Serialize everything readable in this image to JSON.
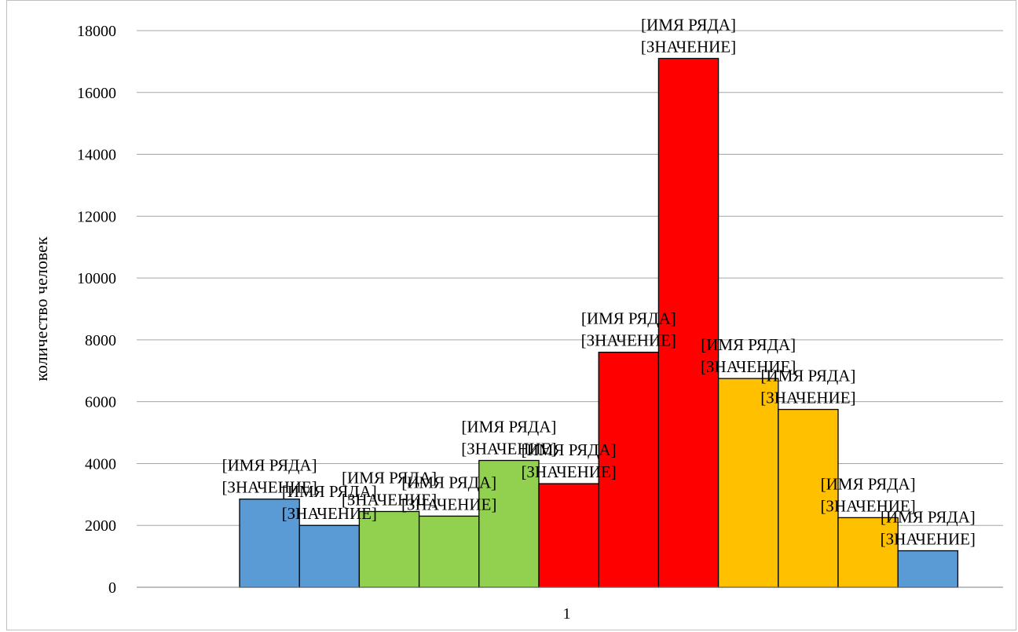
{
  "chart_data": {
    "type": "bar",
    "categories": [
      "1"
    ],
    "ylabel": "количество человек",
    "xlabel": "",
    "ylim": [
      0,
      18000
    ],
    "yticks": [
      0,
      2000,
      4000,
      6000,
      8000,
      10000,
      12000,
      14000,
      16000,
      18000
    ],
    "grid": true,
    "series": [
      {
        "label_name": "[ИМЯ РЯДА]",
        "label_value": "[ЗНАЧЕНИЕ]",
        "value": 2850,
        "color": "#5b9bd5"
      },
      {
        "label_name": "[ИМЯ РЯДА]",
        "label_value": "[ЗНАЧЕНИЕ]",
        "value": 2000,
        "color": "#5b9bd5"
      },
      {
        "label_name": "[ИМЯ РЯДА]",
        "label_value": "[ЗНАЧЕНИЕ]",
        "value": 2450,
        "color": "#92d050"
      },
      {
        "label_name": "[ИМЯ РЯДА]",
        "label_value": "[ЗНАЧЕНИЕ]",
        "value": 2300,
        "color": "#92d050"
      },
      {
        "label_name": "[ИМЯ РЯДА]",
        "label_value": "[ЗНАЧЕНИЕ]",
        "value": 4100,
        "color": "#92d050"
      },
      {
        "label_name": "[ИМЯ РЯДА]",
        "label_value": "[ЗНАЧЕНИЕ]",
        "value": 3350,
        "color": "#ff0000"
      },
      {
        "label_name": "[ИМЯ РЯДА]",
        "label_value": "[ЗНАЧЕНИЕ]",
        "value": 7600,
        "color": "#ff0000"
      },
      {
        "label_name": "[ИМЯ РЯДА]",
        "label_value": "[ЗНАЧЕНИЕ]",
        "value": 17100,
        "color": "#ff0000"
      },
      {
        "label_name": "[ИМЯ РЯДА]",
        "label_value": "[ЗНАЧЕНИЕ]",
        "value": 6750,
        "color": "#ffc000"
      },
      {
        "label_name": "[ИМЯ РЯДА]",
        "label_value": "[ЗНАЧЕНИЕ]",
        "value": 5750,
        "color": "#ffc000"
      },
      {
        "label_name": "[ИМЯ РЯДА]",
        "label_value": "[ЗНАЧЕНИЕ]",
        "value": 2250,
        "color": "#ffc000"
      },
      {
        "label_name": "[ИМЯ РЯДА]",
        "label_value": "[ЗНАЧЕНИЕ]",
        "value": 1180,
        "color": "#5b9bd5"
      }
    ]
  }
}
